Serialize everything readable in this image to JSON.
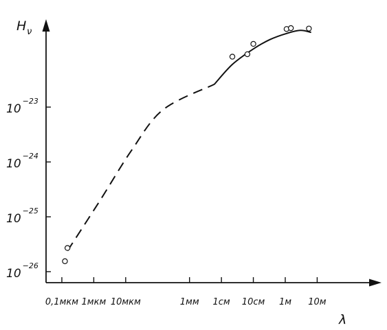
{
  "chart_data": {
    "type": "line",
    "title": "",
    "ylabel": "H",
    "ylabel_sub": "ν",
    "xlabel": "λ",
    "y_scale": "log",
    "x_scale": "log",
    "y_ticks": [
      {
        "value": 1e-26,
        "base": "10",
        "exp": "−26"
      },
      {
        "value": 1e-25,
        "base": "10",
        "exp": "−25"
      },
      {
        "value": 1e-24,
        "base": "10",
        "exp": "−24"
      },
      {
        "value": 1e-23,
        "base": "10",
        "exp": "−23"
      }
    ],
    "x_ticks": [
      {
        "value": 1e-07,
        "label": "0,1мкм"
      },
      {
        "value": 1e-06,
        "label": "1мкм"
      },
      {
        "value": 1e-05,
        "label": "10мкм"
      },
      {
        "value": 0.001,
        "label": "1мм"
      },
      {
        "value": 0.01,
        "label": "1см"
      },
      {
        "value": 0.1,
        "label": "10см"
      },
      {
        "value": 1,
        "label": "1м"
      },
      {
        "value": 10,
        "label": "10м"
      }
    ],
    "xlim_m": [
      3.2e-08,
      300
    ],
    "ylim": [
      6.3e-27,
      4e-22
    ],
    "dashed_curve": [
      {
        "x": 1.5e-07,
        "y": 2.4e-26
      },
      {
        "x": 1.5e-06,
        "y": 1.9e-25
      },
      {
        "x": 1.5e-05,
        "y": 1.6e-24
      },
      {
        "x": 0.00015,
        "y": 9e-24
      },
      {
        "x": 0.006,
        "y": 2.6e-23
      }
    ],
    "solid_curve": [
      {
        "x": 0.006,
        "y": 2.6e-23
      },
      {
        "x": 0.022,
        "y": 6e-23
      },
      {
        "x": 0.1,
        "y": 1.15e-22
      },
      {
        "x": 0.33,
        "y": 1.7e-22
      },
      {
        "x": 1.1,
        "y": 2.2e-22
      },
      {
        "x": 3,
        "y": 2.5e-22
      },
      {
        "x": 6.5,
        "y": 2.3e-22
      }
    ],
    "points": [
      {
        "x": 1.5e-07,
        "y": 2.7e-26
      },
      {
        "x": 1.25e-07,
        "y": 1.55e-26
      },
      {
        "x": 0.022,
        "y": 8.3e-23
      },
      {
        "x": 0.065,
        "y": 9.2e-23
      },
      {
        "x": 0.1,
        "y": 1.42e-22
      },
      {
        "x": 1.1,
        "y": 2.65e-22
      },
      {
        "x": 1.5,
        "y": 2.75e-22
      },
      {
        "x": 5.5,
        "y": 2.7e-22
      }
    ]
  }
}
